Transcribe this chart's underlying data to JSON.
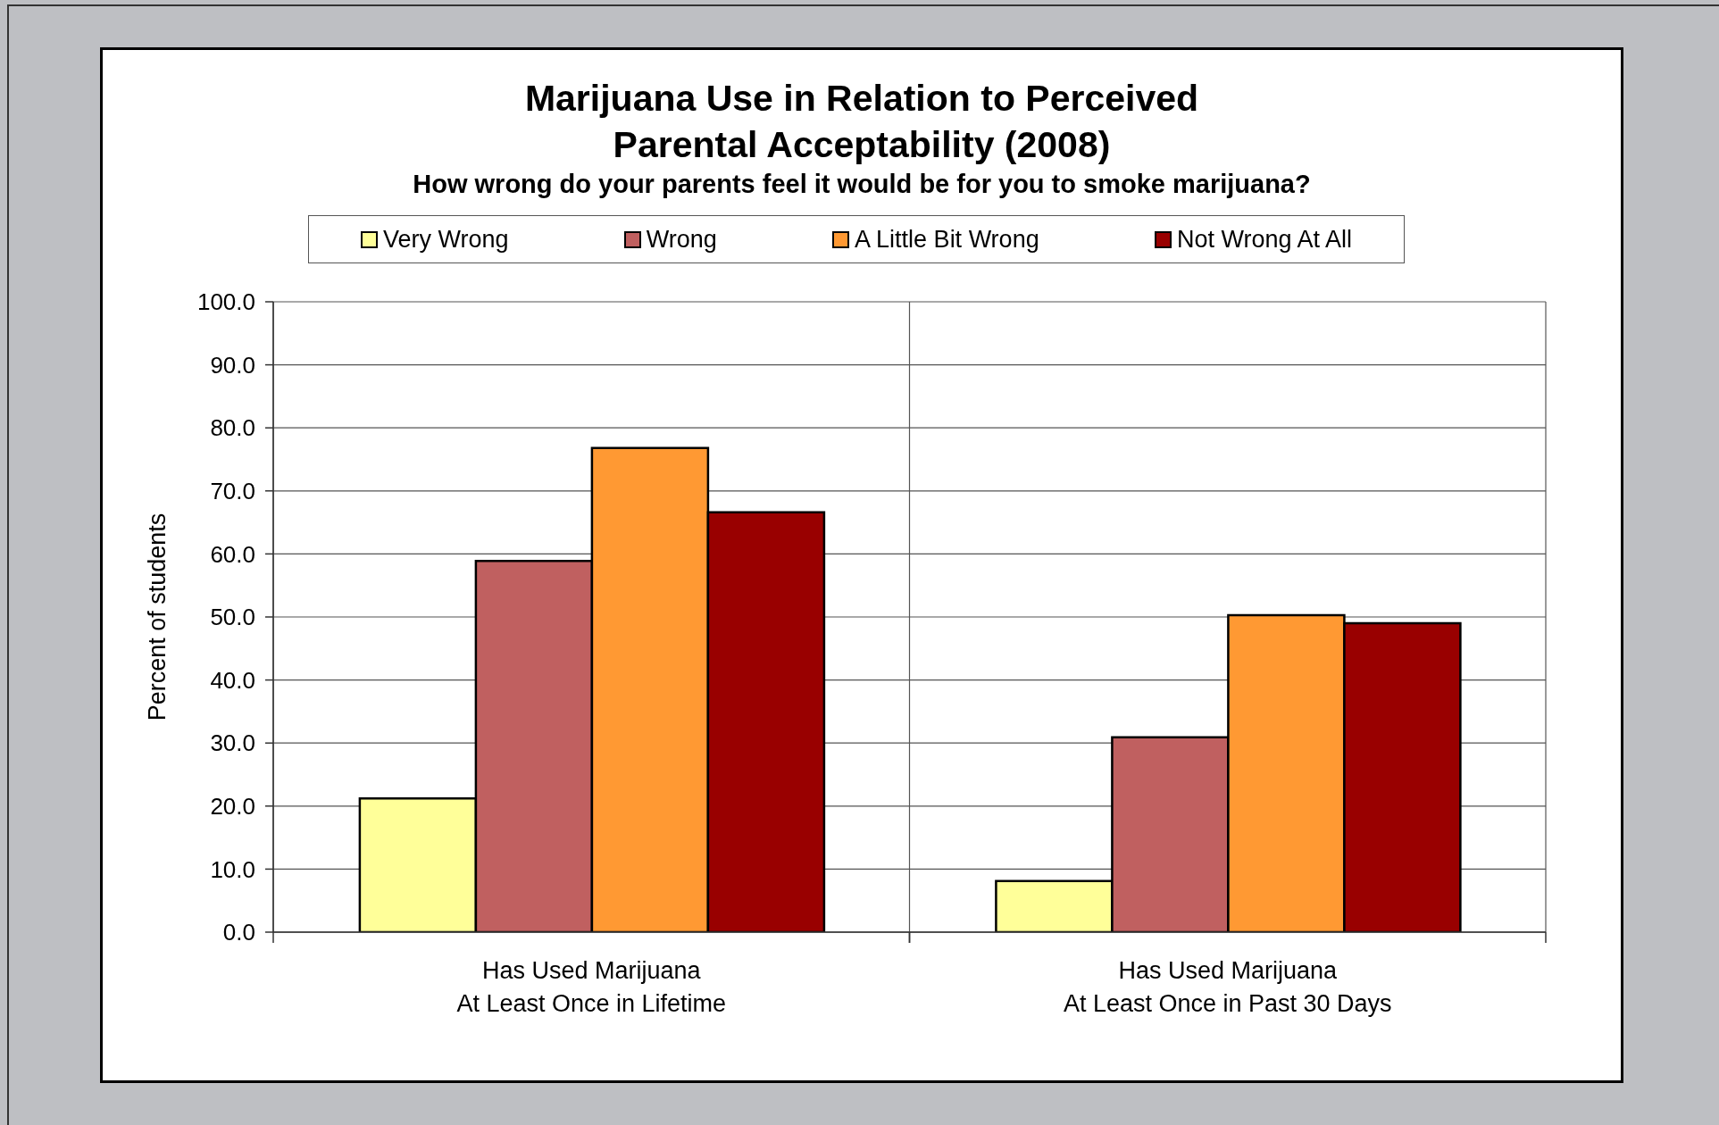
{
  "chart_data": {
    "type": "bar",
    "title": "Marijuana Use in Relation to Perceived Parental Acceptability (2008)",
    "subtitle": "How wrong do your parents feel it would be for you to smoke marijuana?",
    "ylabel": "Percent of students",
    "categories": [
      "Has Used Marijuana\nAt Least Once in Lifetime",
      "Has Used Marijuana\nAt Least Once in Past 30 Days"
    ],
    "series": [
      {
        "name": "Very Wrong",
        "color": "#ffff99",
        "values": [
          21.2,
          8.1
        ]
      },
      {
        "name": "Wrong",
        "color": "#c06060",
        "values": [
          58.9,
          30.9
        ]
      },
      {
        "name": "A Little Bit Wrong",
        "color": "#ff9933",
        "values": [
          76.8,
          50.3
        ]
      },
      {
        "name": "Not Wrong At All",
        "color": "#990000",
        "values": [
          66.6,
          49.0
        ]
      }
    ],
    "ylim": [
      0,
      100
    ],
    "yticks": [
      {
        "value": 0,
        "label": "0.0"
      },
      {
        "value": 10,
        "label": "10.0"
      },
      {
        "value": 20,
        "label": "20.0"
      },
      {
        "value": 30,
        "label": "30.0"
      },
      {
        "value": 40,
        "label": "40.0"
      },
      {
        "value": 50,
        "label": "50.0"
      },
      {
        "value": 60,
        "label": "60.0"
      },
      {
        "value": 70,
        "label": "70.0"
      },
      {
        "value": 80,
        "label": "80.0"
      },
      {
        "value": 90,
        "label": "90.0"
      },
      {
        "value": 100,
        "label": "100.0"
      }
    ],
    "grid": true,
    "legend": "top"
  }
}
